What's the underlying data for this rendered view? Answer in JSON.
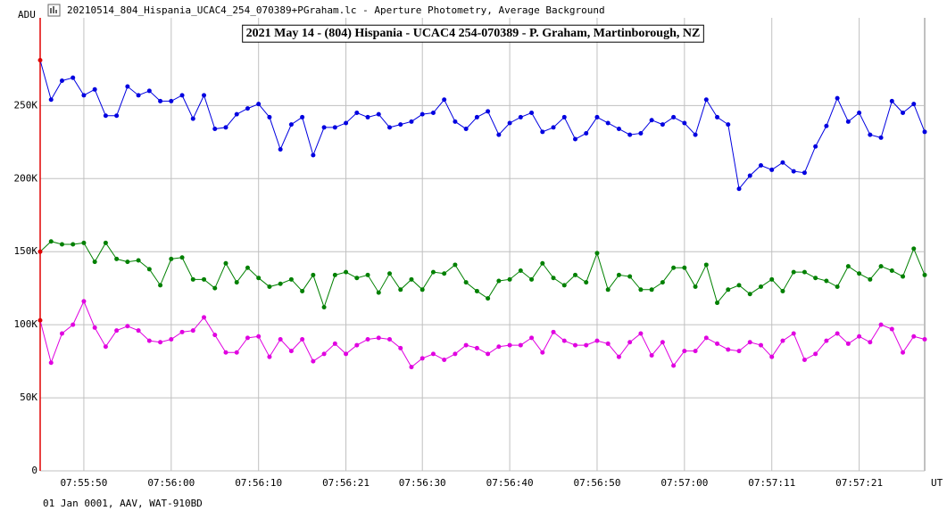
{
  "window": {
    "title": "20210514_804_Hispania_UCAC4_254_070389+PGraham.lc - Aperture Photometry, Average Background"
  },
  "chart_data": {
    "type": "line",
    "title": "2021 May 14 - (804) Hispania - UCAC4 254-070389 - P. Graham, Martinborough, NZ",
    "y_label": "ADU",
    "x_label": "UT",
    "footer": "01 Jan 0001, AAV, WAT-910BD",
    "xlim": [
      0,
      81
    ],
    "xticks": [
      {
        "value": 4,
        "label": "07:55:50"
      },
      {
        "value": 12,
        "label": "07:56:00"
      },
      {
        "value": 20,
        "label": "07:56:10"
      },
      {
        "value": 28,
        "label": "07:56:21"
      },
      {
        "value": 35,
        "label": "07:56:30"
      },
      {
        "value": 43,
        "label": "07:56:40"
      },
      {
        "value": 51,
        "label": "07:56:50"
      },
      {
        "value": 59,
        "label": "07:57:00"
      },
      {
        "value": 67,
        "label": "07:57:11"
      },
      {
        "value": 75,
        "label": "07:57:21"
      }
    ],
    "ylim": [
      0,
      310000
    ],
    "yticks": [
      0,
      {
        "value": 50000,
        "label": "50K"
      },
      {
        "value": 100000,
        "label": "100K"
      },
      {
        "value": 150000,
        "label": "150K"
      },
      {
        "value": 200000,
        "label": "200K"
      },
      {
        "value": 250000,
        "label": "250K"
      }
    ],
    "grid": true,
    "cursor_color": "#e00000",
    "series": [
      {
        "color": "#0000e0",
        "values": [
          281000,
          254000,
          267000,
          269000,
          257000,
          261000,
          243000,
          243000,
          263000,
          257000,
          260000,
          253000,
          253000,
          257000,
          241000,
          257000,
          234000,
          235000,
          244000,
          248000,
          251000,
          242000,
          220000,
          237000,
          242000,
          216000,
          235000,
          235000,
          238000,
          245000,
          242000,
          244000,
          235000,
          237000,
          239000,
          244000,
          245000,
          254000,
          239000,
          234000,
          242000,
          246000,
          230000,
          238000,
          242000,
          245000,
          232000,
          235000,
          242000,
          227000,
          231000,
          242000,
          238000,
          234000,
          230000,
          231000,
          240000,
          237000,
          242000,
          238000,
          230000,
          254000,
          242000,
          237000,
          193000,
          202000,
          209000,
          206000,
          211000,
          205000,
          204000,
          222000,
          236000,
          255000,
          239000,
          245000,
          230000,
          228000,
          253000,
          245000,
          251000,
          232000
        ]
      },
      {
        "color": "#008000",
        "values": [
          150000,
          157000,
          155000,
          155000,
          156000,
          143000,
          156000,
          145000,
          143000,
          144000,
          138000,
          127000,
          145000,
          146000,
          131000,
          131000,
          125000,
          142000,
          129000,
          139000,
          132000,
          126000,
          128000,
          131000,
          123000,
          134000,
          112000,
          134000,
          136000,
          132000,
          134000,
          122000,
          135000,
          124000,
          131000,
          124000,
          136000,
          135000,
          141000,
          129000,
          123000,
          118000,
          130000,
          131000,
          137000,
          131000,
          142000,
          132000,
          127000,
          134000,
          129000,
          149000,
          124000,
          134000,
          133000,
          124000,
          124000,
          129000,
          139000,
          139000,
          126000,
          141000,
          115000,
          124000,
          127000,
          121000,
          126000,
          131000,
          123000,
          136000,
          136000,
          132000,
          130000,
          126000,
          140000,
          135000,
          131000,
          140000,
          137000,
          133000,
          152000,
          134000
        ]
      },
      {
        "color": "#e000e0",
        "values": [
          103000,
          74000,
          94000,
          100000,
          116000,
          98000,
          85000,
          96000,
          99000,
          96000,
          89000,
          88000,
          90000,
          95000,
          96000,
          105000,
          93000,
          81000,
          81000,
          91000,
          92000,
          78000,
          90000,
          82000,
          90000,
          75000,
          80000,
          87000,
          80000,
          86000,
          90000,
          91000,
          90000,
          84000,
          71000,
          77000,
          80000,
          76000,
          80000,
          86000,
          84000,
          80000,
          85000,
          86000,
          86000,
          91000,
          81000,
          95000,
          89000,
          86000,
          86000,
          89000,
          87000,
          78000,
          88000,
          94000,
          79000,
          88000,
          72000,
          82000,
          82000,
          91000,
          87000,
          83000,
          82000,
          88000,
          86000,
          78000,
          89000,
          94000,
          76000,
          80000,
          89000,
          94000,
          87000,
          92000,
          88000,
          100000,
          97000,
          81000,
          92000,
          90000
        ]
      }
    ]
  }
}
